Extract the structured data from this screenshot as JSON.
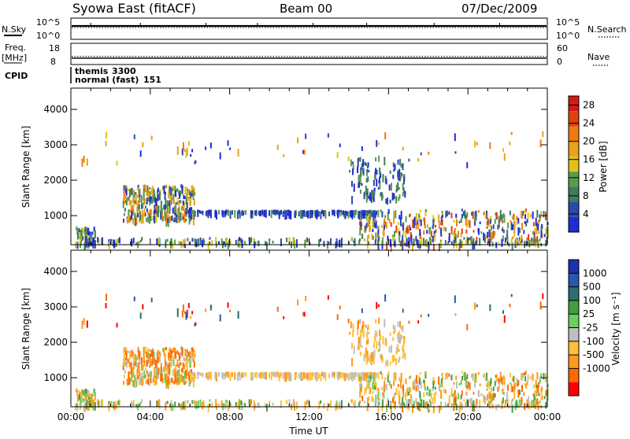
{
  "header": {
    "station_title": "Syowa East (fitACF)",
    "beam": "Beam 00",
    "date": "07/Dec/2009"
  },
  "sidebar_labels": {
    "nsky": "N.Sky",
    "freq": "Freq.",
    "freq_unit": "[MHz]",
    "cpid": "CPID",
    "nsearch": "N.Search",
    "nave": "Nave"
  },
  "cpid_entries": [
    {
      "name": "themis",
      "id": "3300"
    },
    {
      "name": "normal (fast)",
      "id": "151"
    }
  ],
  "colors": {
    "power": [
      "#1f2bd6",
      "#2b49a8",
      "#3b7f5a",
      "#5b9b4d",
      "#e0c414",
      "#e8a020",
      "#ef7a10",
      "#e04010",
      "#d81818"
    ],
    "velocity": [
      "#ff0000",
      "#ff6a00",
      "#ff9a1a",
      "#ffbf3a",
      "#bfbfbf",
      "#6ad05a",
      "#3fa03f",
      "#2b6e6e",
      "#2a55b0",
      "#1e2fb0"
    ]
  },
  "chart_data": [
    {
      "id": "noise",
      "type": "line",
      "left_axis": {
        "label": "N.Sky",
        "ticks": [
          "10^5",
          "10^0"
        ]
      },
      "right_axis": {
        "label": "N.Search",
        "ticks": [
          "10^5",
          "10^0"
        ]
      },
      "series": [
        {
          "name": "N.Sky"
        },
        {
          "name": "N.Search"
        }
      ]
    },
    {
      "id": "freq",
      "type": "line",
      "left_axis": {
        "label": "Freq. [MHz]",
        "ticks": [
          18,
          8
        ],
        "ylim": [
          8,
          18
        ]
      },
      "right_axis": {
        "label": "Nave",
        "ticks": [
          60,
          0
        ],
        "ylim": [
          0,
          60
        ]
      },
      "series": [
        {
          "name": "Freq.",
          "value": 11
        },
        {
          "name": "Nave",
          "value": 23
        }
      ]
    },
    {
      "id": "power",
      "type": "heatmap",
      "ylabel": "Slant Range [km]",
      "ylim": [
        180,
        4600
      ],
      "yticks": [
        1000,
        2000,
        3000,
        4000
      ],
      "xlim": [
        0,
        24
      ],
      "colorbar": {
        "label": "Power [dB]",
        "ticks": [
          4,
          8,
          12,
          16,
          20,
          24,
          28
        ],
        "vmin": 0,
        "vmax": 30
      }
    },
    {
      "id": "velocity",
      "type": "heatmap",
      "ylabel": "Slant Range [km]",
      "ylim": [
        180,
        4600
      ],
      "yticks": [
        1000,
        2000,
        3000,
        4000
      ],
      "xlim": [
        0,
        24
      ],
      "xticks": [
        "00:00",
        "04:00",
        "08:00",
        "12:00",
        "16:00",
        "20:00",
        "00:00"
      ],
      "xlabel": "Time UT",
      "colorbar": {
        "label": "Velocity [m s⁻¹]",
        "ticks": [
          "1000",
          "500",
          "100",
          "25",
          "-25",
          "-100",
          "-500",
          "-1000"
        ]
      }
    }
  ]
}
